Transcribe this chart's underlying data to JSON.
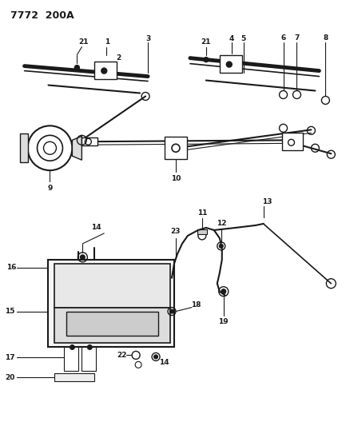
{
  "title": "7772  200A",
  "bg_color": "#ffffff",
  "line_color": "#1a1a1a",
  "fig_width": 4.28,
  "fig_height": 5.33,
  "dpi": 100
}
